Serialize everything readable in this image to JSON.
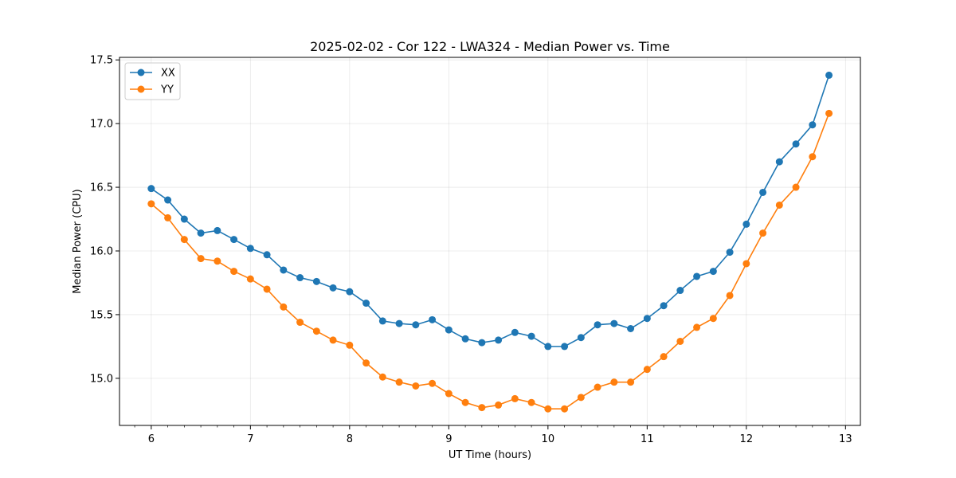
{
  "chart_data": {
    "type": "line",
    "title": "2025-02-02 - Cor 122 - LWA324 - Median Power vs. Time",
    "xlabel": "UT Time (hours)",
    "ylabel": "Median Power (CPU)",
    "xlim": [
      5.68,
      13.15
    ],
    "ylim": [
      14.63,
      17.52
    ],
    "xticks": [
      6,
      7,
      8,
      9,
      10,
      11,
      12,
      13
    ],
    "xtick_labels": [
      "6",
      "7",
      "8",
      "9",
      "10",
      "11",
      "12",
      "13"
    ],
    "yticks": [
      15.0,
      15.5,
      16.0,
      16.5,
      17.0,
      17.5
    ],
    "ytick_labels": [
      "15.0",
      "15.5",
      "16.0",
      "16.5",
      "17.0",
      "17.5"
    ],
    "grid": true,
    "legend_position": "top-left",
    "x": [
      6.0,
      6.1667,
      6.3333,
      6.5,
      6.6667,
      6.8333,
      7.0,
      7.1667,
      7.3333,
      7.5,
      7.6667,
      7.8333,
      8.0,
      8.1667,
      8.3333,
      8.5,
      8.6667,
      8.8333,
      9.0,
      9.1667,
      9.3333,
      9.5,
      9.6667,
      9.8333,
      10.0,
      10.1667,
      10.3333,
      10.5,
      10.6667,
      10.8333,
      11.0,
      11.1667,
      11.3333,
      11.5,
      11.6667,
      11.8333,
      12.0,
      12.1667,
      12.3333,
      12.5,
      12.6667,
      12.8333
    ],
    "series": [
      {
        "name": "XX",
        "color": "#1f77b4",
        "values": [
          16.49,
          16.4,
          16.25,
          16.14,
          16.16,
          16.09,
          16.02,
          15.97,
          15.85,
          15.79,
          15.76,
          15.71,
          15.68,
          15.59,
          15.45,
          15.43,
          15.42,
          15.46,
          15.38,
          15.31,
          15.28,
          15.3,
          15.36,
          15.33,
          15.25,
          15.25,
          15.32,
          15.42,
          15.43,
          15.39,
          15.47,
          15.57,
          15.69,
          15.8,
          15.84,
          15.99,
          16.21,
          16.46,
          16.7,
          16.84,
          16.99,
          17.38
        ]
      },
      {
        "name": "YY",
        "color": "#ff7f0e",
        "values": [
          16.37,
          16.26,
          16.09,
          15.94,
          15.92,
          15.84,
          15.78,
          15.7,
          15.56,
          15.44,
          15.37,
          15.3,
          15.26,
          15.12,
          15.01,
          14.97,
          14.94,
          14.96,
          14.88,
          14.81,
          14.77,
          14.79,
          14.84,
          14.81,
          14.76,
          14.76,
          14.85,
          14.93,
          14.97,
          14.97,
          15.07,
          15.17,
          15.29,
          15.4,
          15.47,
          15.65,
          15.9,
          16.14,
          16.36,
          16.5,
          16.74,
          17.08
        ]
      }
    ]
  }
}
